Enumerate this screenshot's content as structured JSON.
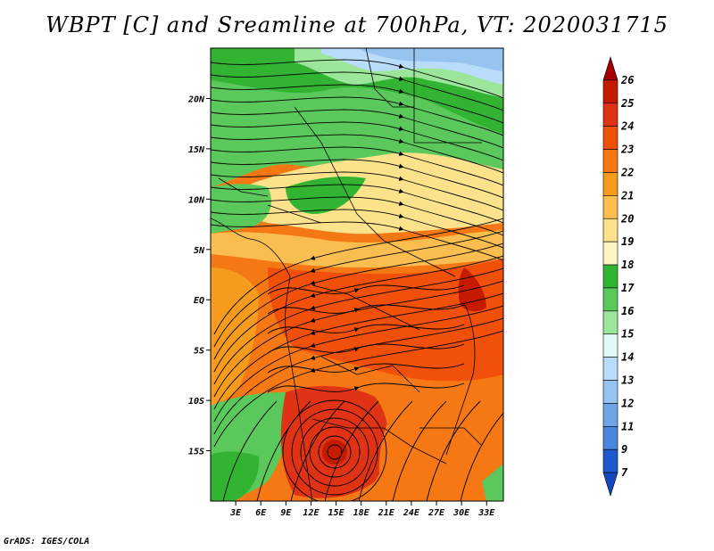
{
  "title": "WBPT [C] and Sreamline at 700hPa, VT: 2020031715",
  "footer": "GrADS: IGES/COLA",
  "map": {
    "lat_ticks": [
      "20N",
      "15N",
      "10N",
      "5N",
      "EQ",
      "5S",
      "10S",
      "15S"
    ],
    "lon_ticks": [
      "3E",
      "6E",
      "9E",
      "12E",
      "15E",
      "18E",
      "21E",
      "24E",
      "27E",
      "30E",
      "33E"
    ],
    "lat_range": [
      -20,
      25
    ],
    "lon_range": [
      0,
      35
    ]
  },
  "colorbar": {
    "labels": [
      "26",
      "25",
      "24",
      "23",
      "22",
      "21",
      "20",
      "19",
      "18",
      "17",
      "16",
      "15",
      "14",
      "13",
      "12",
      "11",
      "9",
      "7"
    ],
    "colors": [
      "#a50000",
      "#c41a00",
      "#e03214",
      "#f0500a",
      "#f57814",
      "#f59b1e",
      "#fabe50",
      "#fde28c",
      "#fff5c3",
      "#32b432",
      "#5ac85a",
      "#9be69b",
      "#e1faf5",
      "#b9dcfa",
      "#96c3f0",
      "#6ea5e6",
      "#4b87dc",
      "#1e5acd",
      "#1446be"
    ]
  }
}
